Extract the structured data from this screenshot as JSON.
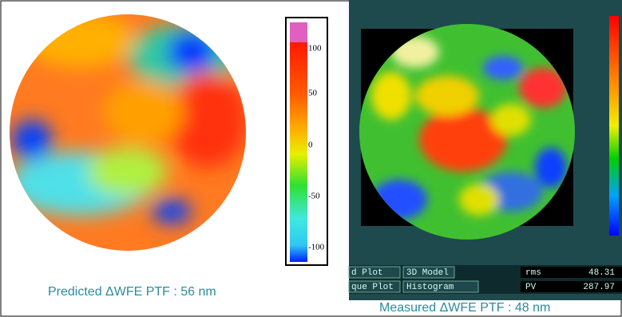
{
  "left_panel": {
    "colorbar_labels": [
      "100",
      "50",
      "0",
      "-50",
      "-100"
    ],
    "caption": "Predicted ΔWFE PTF : 56 nm"
  },
  "right_panel": {
    "toolbar": {
      "buttons": [
        "d Plot",
        "3D Model",
        "que Plot",
        "Histogram"
      ],
      "stats": [
        {
          "label": "rms",
          "value": "48.31"
        },
        {
          "label": "PV",
          "value": "287.97"
        }
      ]
    },
    "caption": "Measured ΔWFE PTF : 48 nm"
  }
}
